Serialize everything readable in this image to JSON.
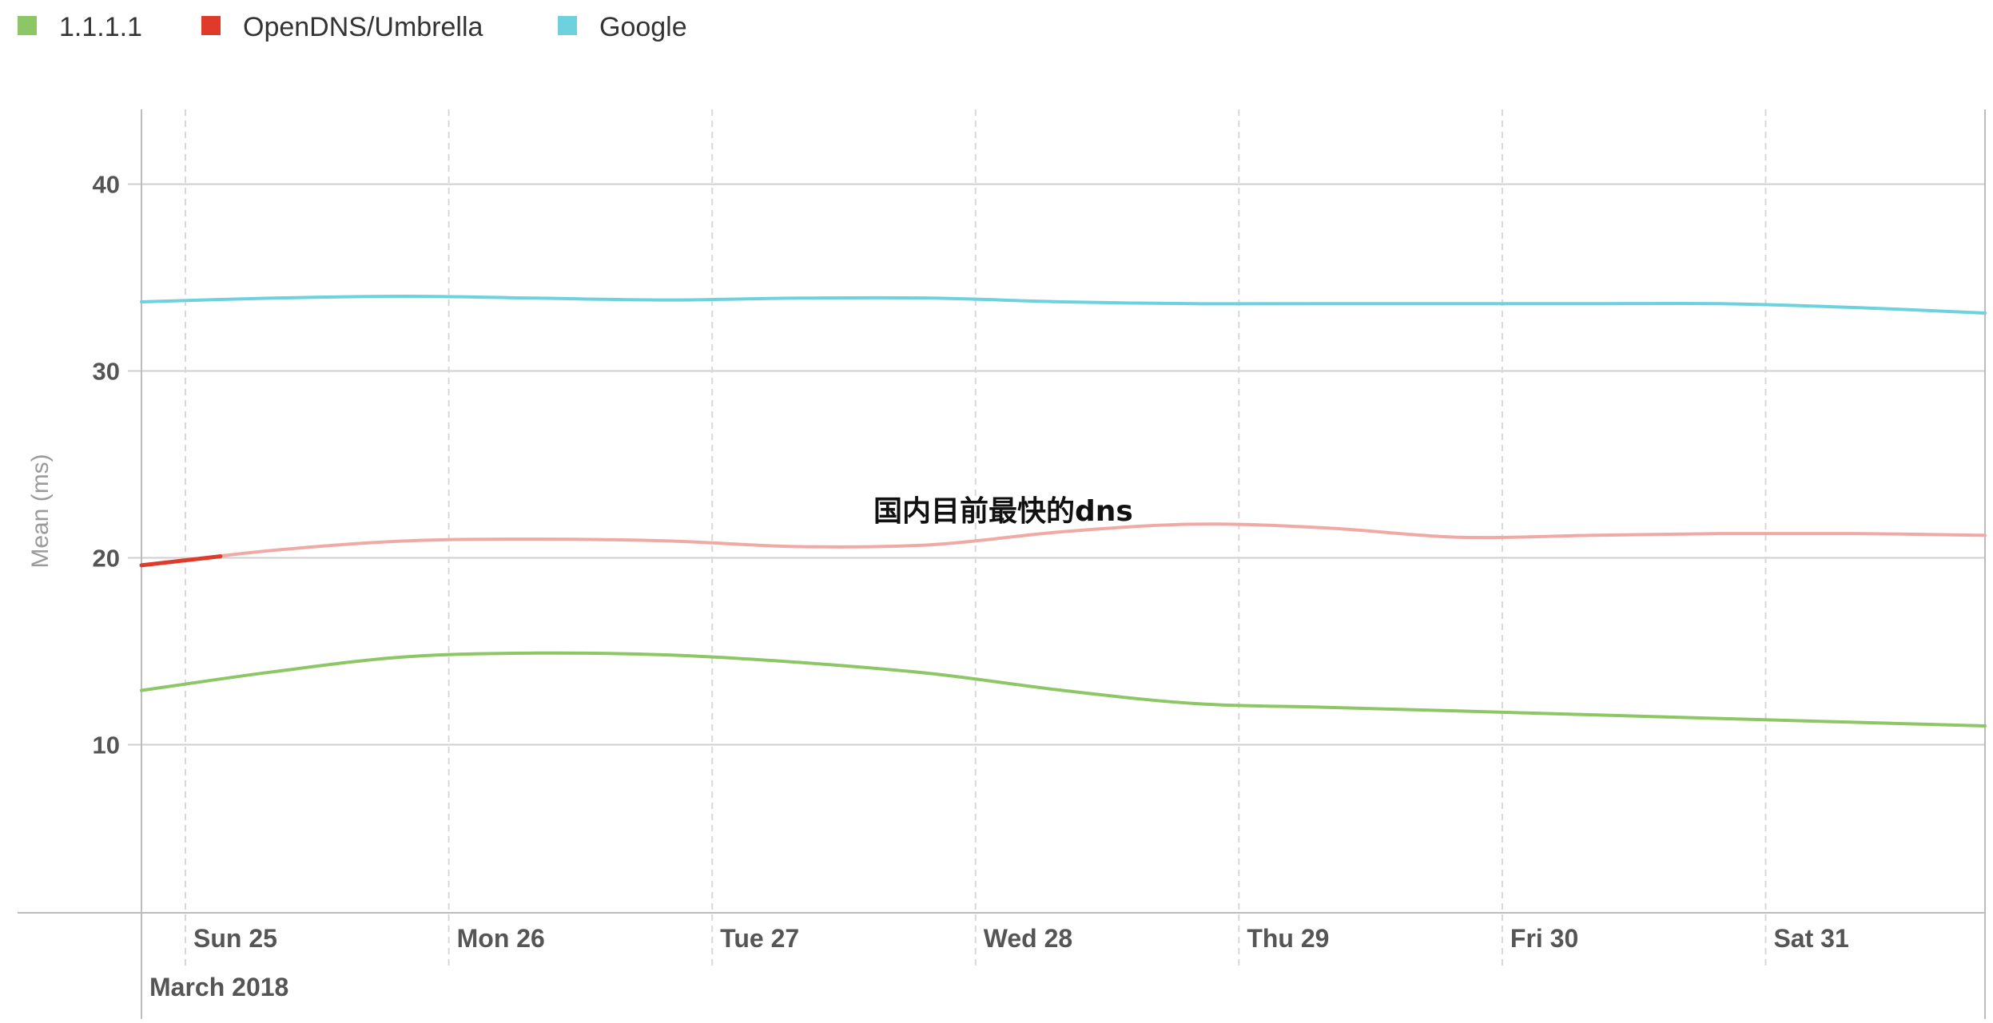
{
  "chart_data": {
    "type": "line",
    "title": "",
    "xlabel": "",
    "ylabel": "Mean (ms)",
    "ylim": [
      1,
      44
    ],
    "y_ticks": [
      10,
      20,
      30,
      40
    ],
    "x_ticks": [
      "Sun 25",
      "Mon 26",
      "Tue 27",
      "Wed 28",
      "Thu 29",
      "Fri 30",
      "Sat 31"
    ],
    "x_tick_values": [
      0.167,
      1.167,
      2.167,
      3.167,
      4.167,
      5.167,
      6.167
    ],
    "xlim": [
      0,
      7
    ],
    "month_label": "March 2018",
    "legend_position": "top-left",
    "grid": true,
    "annotation": "国内目前最快的dns",
    "series": [
      {
        "name": "1.1.1.1",
        "color": "#8cc665",
        "x": [
          0,
          0.5,
          1.0,
          1.5,
          2.0,
          2.5,
          3.0,
          3.5,
          4.0,
          4.5,
          5.0,
          5.5,
          6.0,
          6.5,
          7.0
        ],
        "values": [
          12.9,
          13.9,
          14.7,
          14.9,
          14.8,
          14.4,
          13.8,
          12.9,
          12.2,
          12.0,
          11.8,
          11.6,
          11.4,
          11.2,
          11.0
        ]
      },
      {
        "name": "OpenDNS/Umbrella",
        "color": "#e03a2a",
        "faded_color": "#f0aaa6",
        "highlight_until_x": 0.3,
        "x": [
          0,
          0.5,
          1.0,
          1.5,
          2.0,
          2.5,
          3.0,
          3.5,
          4.0,
          4.5,
          5.0,
          5.5,
          6.0,
          6.5,
          7.0
        ],
        "values": [
          19.6,
          20.4,
          20.9,
          21.0,
          20.9,
          20.6,
          20.7,
          21.4,
          21.8,
          21.6,
          21.1,
          21.2,
          21.3,
          21.3,
          21.2
        ]
      },
      {
        "name": "Google",
        "color": "#6dd2de",
        "x": [
          0,
          0.5,
          1.0,
          1.5,
          2.0,
          2.5,
          3.0,
          3.5,
          4.0,
          4.5,
          5.0,
          5.5,
          6.0,
          6.5,
          7.0
        ],
        "values": [
          33.7,
          33.9,
          34.0,
          33.9,
          33.8,
          33.9,
          33.9,
          33.7,
          33.6,
          33.6,
          33.6,
          33.6,
          33.6,
          33.4,
          33.1
        ]
      }
    ]
  }
}
